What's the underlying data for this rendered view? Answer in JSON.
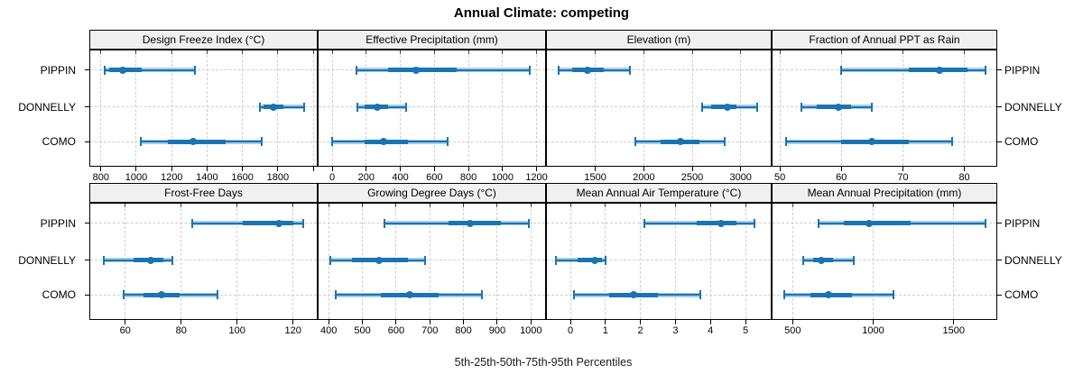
{
  "title": "Annual Climate: competing",
  "footer": "5th-25th-50th-75th-95th Percentiles",
  "colors": {
    "dark_blue": "#1a74b2",
    "light_blue": "#a8cde6",
    "gridline": "#cfcfcf",
    "strip_bg": "#f0f0f0",
    "border": "#000000"
  },
  "chart_data": {
    "type": "dot-whisker",
    "subtype": "lattice-percentile-dotplot",
    "layout": "2 rows x 4 columns, shared category axis",
    "categories": [
      "PIPPIN",
      "DONNELLY",
      "COMO"
    ],
    "percentile_levels": [
      5,
      25,
      50,
      75,
      95
    ],
    "xlabel": "5th-25th-50th-75th-95th Percentiles",
    "grid": "dashed both directions",
    "panels": [
      {
        "label": "Design Freeze Index (°C)",
        "row": 0,
        "col": 0,
        "xlim": [
          740,
          2020
        ],
        "ticks": [
          {
            "v": 800,
            "label": "800"
          },
          {
            "v": 1000,
            "label": "1000"
          },
          {
            "v": 1200,
            "label": "1200"
          },
          {
            "v": 1400,
            "label": "1400"
          },
          {
            "v": 1600,
            "label": "1600"
          },
          {
            "v": 1800,
            "label": "1800"
          },
          {
            "v": 2000,
            "label": ""
          }
        ],
        "series": [
          {
            "name": "PIPPIN",
            "percentiles_5_25_50_75_95": [
              820,
              845,
              925,
              1030,
              1330
            ]
          },
          {
            "name": "DONNELLY",
            "percentiles_5_25_50_75_95": [
              1700,
              1720,
              1775,
              1830,
              1950
            ]
          },
          {
            "name": "COMO",
            "percentiles_5_25_50_75_95": [
              1025,
              1180,
              1320,
              1505,
              1710
            ]
          }
        ]
      },
      {
        "label": "Effective Precipitation (mm)",
        "row": 0,
        "col": 1,
        "xlim": [
          -80,
          1250
        ],
        "ticks": [
          {
            "v": 0,
            "label": "0"
          },
          {
            "v": 200,
            "label": "200"
          },
          {
            "v": 400,
            "label": "400"
          },
          {
            "v": 600,
            "label": "600"
          },
          {
            "v": 800,
            "label": "800"
          },
          {
            "v": 1000,
            "label": "1000"
          },
          {
            "v": 1200,
            "label": "1200"
          }
        ],
        "series": [
          {
            "name": "PIPPIN",
            "percentiles_5_25_50_75_95": [
              145,
              330,
              490,
              730,
              1160
            ]
          },
          {
            "name": "DONNELLY",
            "percentiles_5_25_50_75_95": [
              150,
              190,
              265,
              330,
              435
            ]
          },
          {
            "name": "COMO",
            "percentiles_5_25_50_75_95": [
              0,
              190,
              300,
              445,
              680
            ]
          }
        ]
      },
      {
        "label": "Elevation (m)",
        "row": 0,
        "col": 2,
        "xlim": [
          1000,
          3310
        ],
        "ticks": [
          {
            "v": 1500,
            "label": "1500"
          },
          {
            "v": 2000,
            "label": "2000"
          },
          {
            "v": 2500,
            "label": "2500"
          },
          {
            "v": 3000,
            "label": "3000"
          }
        ],
        "series": [
          {
            "name": "PIPPIN",
            "percentiles_5_25_50_75_95": [
              1120,
              1265,
              1420,
              1590,
              1855
            ]
          },
          {
            "name": "DONNELLY",
            "percentiles_5_25_50_75_95": [
              2600,
              2695,
              2860,
              2960,
              3170
            ]
          },
          {
            "name": "COMO",
            "percentiles_5_25_50_75_95": [
              1910,
              2170,
              2380,
              2570,
              2835
            ]
          }
        ]
      },
      {
        "label": "Fraction of Annual PPT as Rain",
        "row": 0,
        "col": 3,
        "xlim": [
          48.8,
          85.2
        ],
        "ticks": [
          {
            "v": 50,
            "label": "50"
          },
          {
            "v": 60,
            "label": "60"
          },
          {
            "v": 70,
            "label": "70"
          },
          {
            "v": 80,
            "label": "80"
          }
        ],
        "series": [
          {
            "name": "PIPPIN",
            "percentiles_5_25_50_75_95": [
              60,
              71,
              76,
              80.5,
              83.5
            ]
          },
          {
            "name": "DONNELLY",
            "percentiles_5_25_50_75_95": [
              53.5,
              56,
              59.5,
              61.5,
              65
            ]
          },
          {
            "name": "COMO",
            "percentiles_5_25_50_75_95": [
              51,
              60,
              65,
              71,
              78
            ]
          }
        ]
      },
      {
        "label": "Frost-Free Days",
        "row": 1,
        "col": 0,
        "xlim": [
          47.5,
          128.5
        ],
        "ticks": [
          {
            "v": 60,
            "label": "60"
          },
          {
            "v": 80,
            "label": "80"
          },
          {
            "v": 100,
            "label": "100"
          },
          {
            "v": 120,
            "label": "120"
          }
        ],
        "series": [
          {
            "name": "PIPPIN",
            "percentiles_5_25_50_75_95": [
              84,
              102,
              115,
              120,
              123.5
            ]
          },
          {
            "name": "DONNELLY",
            "percentiles_5_25_50_75_95": [
              52.5,
              63,
              69,
              73.5,
              77
            ]
          },
          {
            "name": "COMO",
            "percentiles_5_25_50_75_95": [
              59.5,
              66.5,
              73,
              79.5,
              93
            ]
          }
        ]
      },
      {
        "label": "Growing Degree Days (°C)",
        "row": 1,
        "col": 1,
        "xlim": [
          370,
          1042
        ],
        "ticks": [
          {
            "v": 400,
            "label": "400"
          },
          {
            "v": 500,
            "label": "500"
          },
          {
            "v": 600,
            "label": "600"
          },
          {
            "v": 700,
            "label": "700"
          },
          {
            "v": 800,
            "label": "800"
          },
          {
            "v": 900,
            "label": "900"
          },
          {
            "v": 1000,
            "label": "1000"
          }
        ],
        "series": [
          {
            "name": "PIPPIN",
            "percentiles_5_25_50_75_95": [
              565,
              755,
              820,
              910,
              995
            ]
          },
          {
            "name": "DONNELLY",
            "percentiles_5_25_50_75_95": [
              405,
              470,
              550,
              635,
              685
            ]
          },
          {
            "name": "COMO",
            "percentiles_5_25_50_75_95": [
              420,
              555,
              640,
              725,
              855
            ]
          }
        ]
      },
      {
        "label": "Mean Annual Air Temperature (°C)",
        "row": 1,
        "col": 2,
        "xlim": [
          -0.67,
          5.72
        ],
        "ticks": [
          {
            "v": 0,
            "label": "0"
          },
          {
            "v": 1,
            "label": "1"
          },
          {
            "v": 2,
            "label": "2"
          },
          {
            "v": 3,
            "label": "3"
          },
          {
            "v": 4,
            "label": "4"
          },
          {
            "v": 5,
            "label": "5"
          }
        ],
        "series": [
          {
            "name": "PIPPIN",
            "percentiles_5_25_50_75_95": [
              2.1,
              3.6,
              4.3,
              4.75,
              5.25
            ]
          },
          {
            "name": "DONNELLY",
            "percentiles_5_25_50_75_95": [
              -0.4,
              0.2,
              0.7,
              0.9,
              1.0
            ]
          },
          {
            "name": "COMO",
            "percentiles_5_25_50_75_95": [
              0.1,
              1.1,
              1.8,
              2.5,
              3.7
            ]
          }
        ]
      },
      {
        "label": "Mean Annual Precipitation (mm)",
        "row": 1,
        "col": 3,
        "xlim": [
          375,
          1765
        ],
        "ticks": [
          {
            "v": 500,
            "label": "500"
          },
          {
            "v": 1000,
            "label": "1000"
          },
          {
            "v": 1500,
            "label": "1500"
          }
        ],
        "series": [
          {
            "name": "PIPPIN",
            "percentiles_5_25_50_75_95": [
              660,
              815,
              975,
              1230,
              1700
            ]
          },
          {
            "name": "DONNELLY",
            "percentiles_5_25_50_75_95": [
              565,
              625,
              675,
              750,
              880
            ]
          },
          {
            "name": "COMO",
            "percentiles_5_25_50_75_95": [
              450,
              610,
              725,
              870,
              1125
            ]
          }
        ]
      }
    ]
  }
}
